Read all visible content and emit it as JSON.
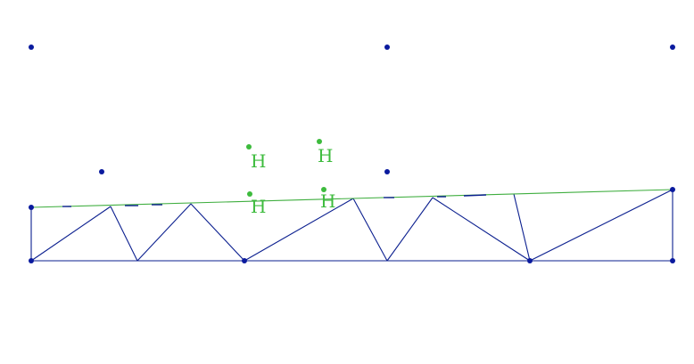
{
  "colors": {
    "truss": "#0b1f8f",
    "node": "#0a1a9e",
    "top_chord": "#3fae3f",
    "marker": "#3dbb3d",
    "background": "#ffffff"
  },
  "node_icon": "filled-dot",
  "h_markers": [
    {
      "label": "H"
    },
    {
      "label": "H"
    },
    {
      "label": "H"
    },
    {
      "label": "H"
    }
  ]
}
